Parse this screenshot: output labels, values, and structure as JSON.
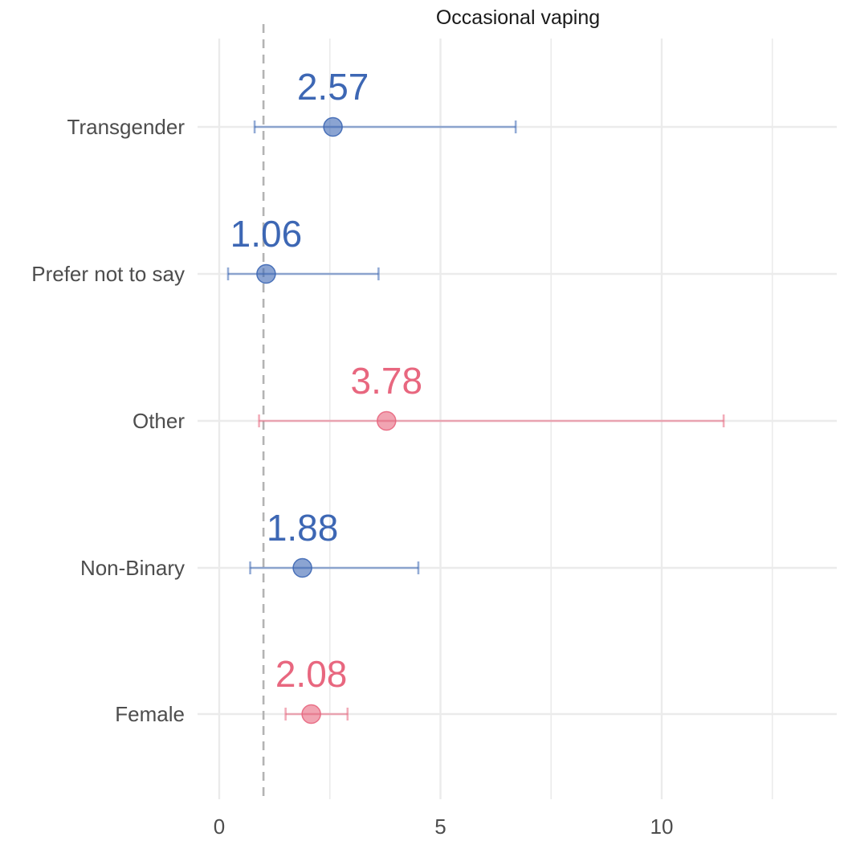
{
  "chart_data": {
    "type": "scatter",
    "title": "Occasional vaping",
    "xlabel": "",
    "ylabel": "",
    "xlim": [
      -0.5,
      14
    ],
    "x_ticks": [
      0,
      5,
      10
    ],
    "reference_line": 1,
    "grid": true,
    "colors": {
      "blue": "#3d67b4",
      "pink": "#e8677f"
    },
    "points": [
      {
        "category": "Transgender",
        "estimate": 2.57,
        "lower": 0.8,
        "upper": 6.7,
        "label": "2.57",
        "color": "blue"
      },
      {
        "category": "Prefer not to say",
        "estimate": 1.06,
        "lower": 0.2,
        "upper": 3.6,
        "label": "1.06",
        "color": "blue"
      },
      {
        "category": "Other",
        "estimate": 3.78,
        "lower": 0.9,
        "upper": 11.4,
        "label": "3.78",
        "color": "pink"
      },
      {
        "category": "Non-Binary",
        "estimate": 1.88,
        "lower": 0.7,
        "upper": 4.5,
        "label": "1.88",
        "color": "blue"
      },
      {
        "category": "Female",
        "estimate": 2.08,
        "lower": 1.5,
        "upper": 2.9,
        "label": "2.08",
        "color": "pink"
      }
    ]
  }
}
